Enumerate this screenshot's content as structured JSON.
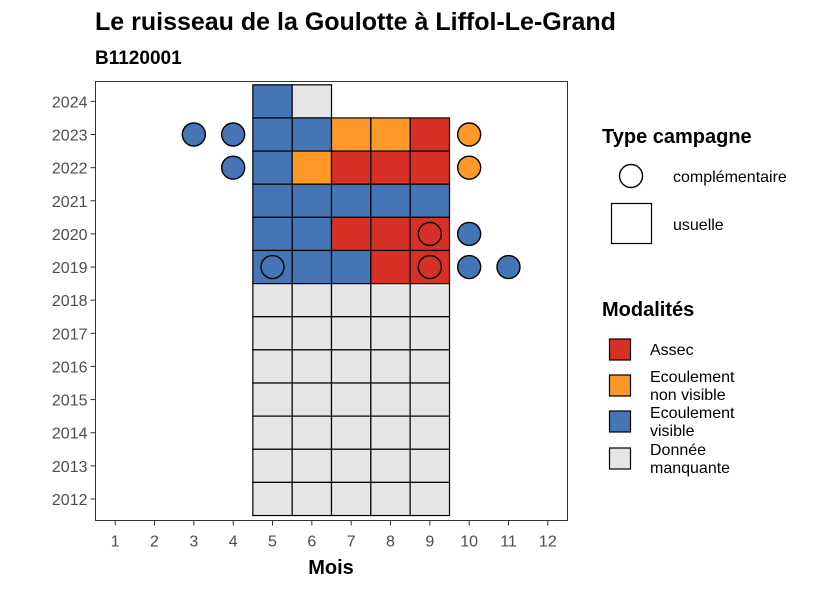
{
  "chart_data": {
    "type": "heatmap",
    "title": "Le ruisseau de la Goulotte à Liffol-Le-Grand",
    "subtitle": "B1120001",
    "xlabel": "Mois",
    "ylabel": "",
    "x_ticks": [
      "1",
      "2",
      "3",
      "4",
      "5",
      "6",
      "7",
      "8",
      "9",
      "10",
      "11",
      "12"
    ],
    "y_ticks": [
      "2012",
      "2013",
      "2014",
      "2015",
      "2016",
      "2017",
      "2018",
      "2019",
      "2020",
      "2021",
      "2022",
      "2023",
      "2024"
    ],
    "xlim": [
      0.5,
      12.5
    ],
    "ylim": [
      2011.35,
      2024.6
    ],
    "grid": false,
    "colors": {
      "Assec": "#d73027",
      "Ecoulement non visible": "#fe9929",
      "Ecoulement visible": "#4575b4",
      "Donnée manquante": "#e5e5e5"
    },
    "usuelle": [
      {
        "year": 2024,
        "month": 5,
        "m": "Ecoulement visible"
      },
      {
        "year": 2024,
        "month": 6,
        "m": "Donnée manquante"
      },
      {
        "year": 2023,
        "month": 5,
        "m": "Ecoulement visible"
      },
      {
        "year": 2023,
        "month": 6,
        "m": "Ecoulement visible"
      },
      {
        "year": 2023,
        "month": 7,
        "m": "Ecoulement non visible"
      },
      {
        "year": 2023,
        "month": 8,
        "m": "Ecoulement non visible"
      },
      {
        "year": 2023,
        "month": 9,
        "m": "Assec"
      },
      {
        "year": 2022,
        "month": 5,
        "m": "Ecoulement visible"
      },
      {
        "year": 2022,
        "month": 6,
        "m": "Ecoulement non visible"
      },
      {
        "year": 2022,
        "month": 7,
        "m": "Assec"
      },
      {
        "year": 2022,
        "month": 8,
        "m": "Assec"
      },
      {
        "year": 2022,
        "month": 9,
        "m": "Assec"
      },
      {
        "year": 2021,
        "month": 5,
        "m": "Ecoulement visible"
      },
      {
        "year": 2021,
        "month": 6,
        "m": "Ecoulement visible"
      },
      {
        "year": 2021,
        "month": 7,
        "m": "Ecoulement visible"
      },
      {
        "year": 2021,
        "month": 8,
        "m": "Ecoulement visible"
      },
      {
        "year": 2021,
        "month": 9,
        "m": "Ecoulement visible"
      },
      {
        "year": 2020,
        "month": 5,
        "m": "Ecoulement visible"
      },
      {
        "year": 2020,
        "month": 6,
        "m": "Ecoulement visible"
      },
      {
        "year": 2020,
        "month": 7,
        "m": "Assec"
      },
      {
        "year": 2020,
        "month": 8,
        "m": "Assec"
      },
      {
        "year": 2020,
        "month": 9,
        "m": "Assec"
      },
      {
        "year": 2019,
        "month": 5,
        "m": "Ecoulement visible"
      },
      {
        "year": 2019,
        "month": 6,
        "m": "Ecoulement visible"
      },
      {
        "year": 2019,
        "month": 7,
        "m": "Ecoulement visible"
      },
      {
        "year": 2019,
        "month": 8,
        "m": "Assec"
      },
      {
        "year": 2019,
        "month": 9,
        "m": "Assec"
      },
      {
        "year": 2018,
        "month": 5,
        "m": "Donnée manquante"
      },
      {
        "year": 2018,
        "month": 6,
        "m": "Donnée manquante"
      },
      {
        "year": 2018,
        "month": 7,
        "m": "Donnée manquante"
      },
      {
        "year": 2018,
        "month": 8,
        "m": "Donnée manquante"
      },
      {
        "year": 2018,
        "month": 9,
        "m": "Donnée manquante"
      },
      {
        "year": 2017,
        "month": 5,
        "m": "Donnée manquante"
      },
      {
        "year": 2017,
        "month": 6,
        "m": "Donnée manquante"
      },
      {
        "year": 2017,
        "month": 7,
        "m": "Donnée manquante"
      },
      {
        "year": 2017,
        "month": 8,
        "m": "Donnée manquante"
      },
      {
        "year": 2017,
        "month": 9,
        "m": "Donnée manquante"
      },
      {
        "year": 2016,
        "month": 5,
        "m": "Donnée manquante"
      },
      {
        "year": 2016,
        "month": 6,
        "m": "Donnée manquante"
      },
      {
        "year": 2016,
        "month": 7,
        "m": "Donnée manquante"
      },
      {
        "year": 2016,
        "month": 8,
        "m": "Donnée manquante"
      },
      {
        "year": 2016,
        "month": 9,
        "m": "Donnée manquante"
      },
      {
        "year": 2015,
        "month": 5,
        "m": "Donnée manquante"
      },
      {
        "year": 2015,
        "month": 6,
        "m": "Donnée manquante"
      },
      {
        "year": 2015,
        "month": 7,
        "m": "Donnée manquante"
      },
      {
        "year": 2015,
        "month": 8,
        "m": "Donnée manquante"
      },
      {
        "year": 2015,
        "month": 9,
        "m": "Donnée manquante"
      },
      {
        "year": 2014,
        "month": 5,
        "m": "Donnée manquante"
      },
      {
        "year": 2014,
        "month": 6,
        "m": "Donnée manquante"
      },
      {
        "year": 2014,
        "month": 7,
        "m": "Donnée manquante"
      },
      {
        "year": 2014,
        "month": 8,
        "m": "Donnée manquante"
      },
      {
        "year": 2014,
        "month": 9,
        "m": "Donnée manquante"
      },
      {
        "year": 2013,
        "month": 5,
        "m": "Donnée manquante"
      },
      {
        "year": 2013,
        "month": 6,
        "m": "Donnée manquante"
      },
      {
        "year": 2013,
        "month": 7,
        "m": "Donnée manquante"
      },
      {
        "year": 2013,
        "month": 8,
        "m": "Donnée manquante"
      },
      {
        "year": 2013,
        "month": 9,
        "m": "Donnée manquante"
      },
      {
        "year": 2012,
        "month": 5,
        "m": "Donnée manquante"
      },
      {
        "year": 2012,
        "month": 6,
        "m": "Donnée manquante"
      },
      {
        "year": 2012,
        "month": 7,
        "m": "Donnée manquante"
      },
      {
        "year": 2012,
        "month": 8,
        "m": "Donnée manquante"
      },
      {
        "year": 2012,
        "month": 9,
        "m": "Donnée manquante"
      }
    ],
    "complementaire": [
      {
        "year": 2023,
        "month": 3,
        "m": "Ecoulement visible"
      },
      {
        "year": 2023,
        "month": 4,
        "m": "Ecoulement visible"
      },
      {
        "year": 2023,
        "month": 10,
        "m": "Ecoulement non visible"
      },
      {
        "year": 2022,
        "month": 4,
        "m": "Ecoulement visible"
      },
      {
        "year": 2022,
        "month": 10,
        "m": "Ecoulement non visible"
      },
      {
        "year": 2020,
        "month": 9,
        "m": "Assec"
      },
      {
        "year": 2020,
        "month": 10,
        "m": "Ecoulement visible"
      },
      {
        "year": 2019,
        "month": 5,
        "m": "Ecoulement visible"
      },
      {
        "year": 2019,
        "month": 9,
        "m": "Assec"
      },
      {
        "year": 2019,
        "month": 10,
        "m": "Ecoulement visible"
      },
      {
        "year": 2019,
        "month": 11,
        "m": "Ecoulement visible"
      }
    ],
    "legend": {
      "type_title": "Type campagne",
      "type_items": [
        "complémentaire",
        "usuelle"
      ],
      "modalites_title": "Modalités",
      "modalites_items": [
        {
          "key": "Assec",
          "lines": [
            "Assec"
          ]
        },
        {
          "key": "Ecoulement non visible",
          "lines": [
            "Ecoulement",
            "non visible"
          ]
        },
        {
          "key": "Ecoulement visible",
          "lines": [
            "Ecoulement",
            "visible"
          ]
        },
        {
          "key": "Donnée manquante",
          "lines": [
            "Donnée",
            "manquante"
          ]
        }
      ],
      "placement": "right"
    }
  }
}
